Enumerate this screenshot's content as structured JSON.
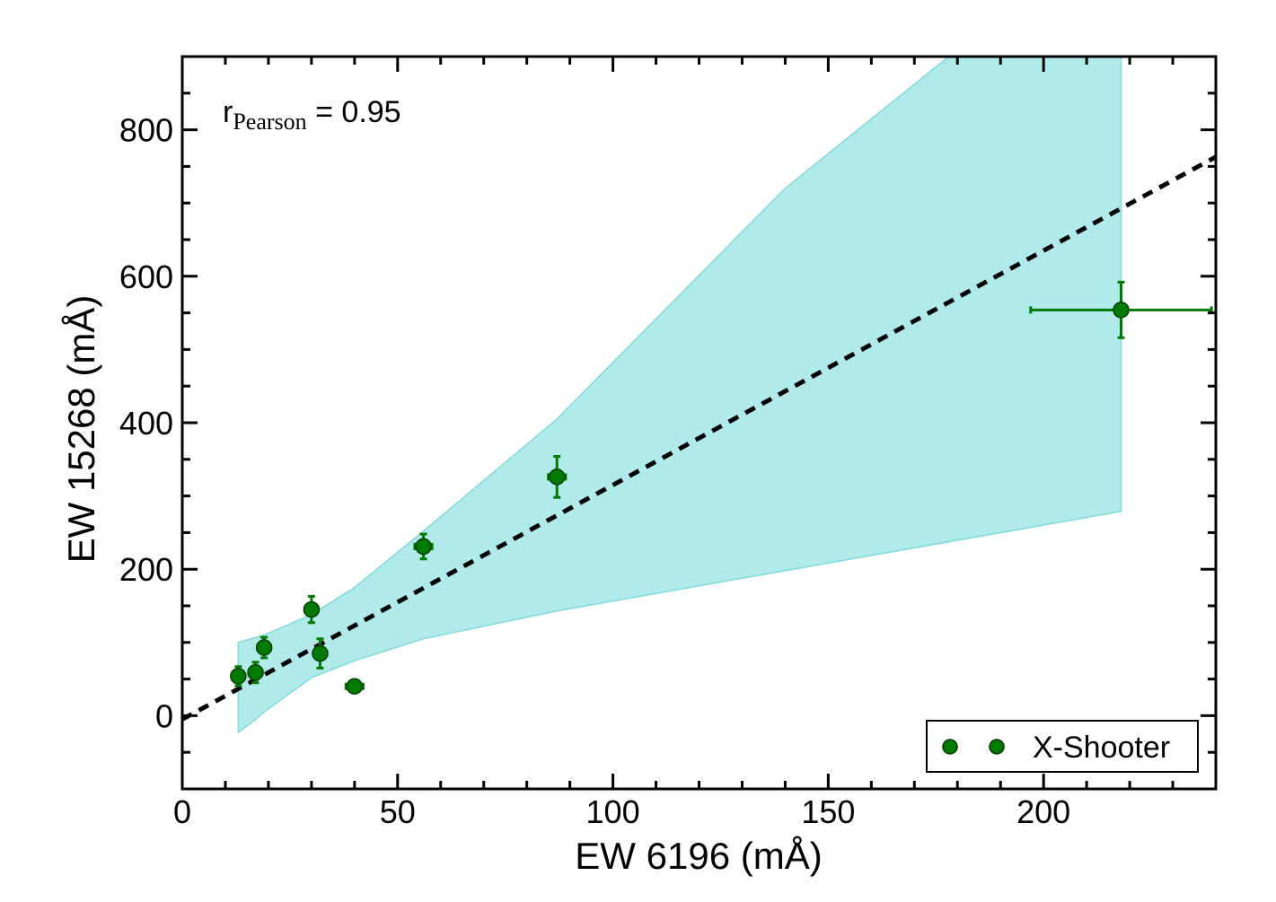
{
  "chart_data": {
    "type": "scatter",
    "title": "",
    "xlabel": "EW 6196 (mÅ)",
    "ylabel": "EW 15268 (mÅ)",
    "xlim": [
      0,
      240
    ],
    "ylim": [
      -100,
      900
    ],
    "xticks": [
      0,
      50,
      100,
      150,
      200
    ],
    "xtick_labels": [
      "0",
      "50",
      "100",
      "150",
      "200"
    ],
    "yticks": [
      0,
      200,
      400,
      600,
      800
    ],
    "ytick_labels": [
      "0",
      "200",
      "400",
      "600",
      "800"
    ],
    "x_minor_step": 10,
    "y_minor_step": 50,
    "grid": false,
    "annotation": {
      "main": "r",
      "subscript": "Pearson",
      "suffix": " = 0.95"
    },
    "legend": {
      "location": "lower-right",
      "label": "X-Shooter"
    },
    "series": [
      {
        "name": "X-Shooter",
        "color": "#007a00",
        "points": [
          {
            "x": 13,
            "y": 54,
            "xerr": 1.5,
            "yerr": 13
          },
          {
            "x": 17,
            "y": 59,
            "xerr": 1.5,
            "yerr": 14
          },
          {
            "x": 19,
            "y": 93,
            "xerr": 1.5,
            "yerr": 14
          },
          {
            "x": 30,
            "y": 145,
            "xerr": 1.5,
            "yerr": 18
          },
          {
            "x": 32,
            "y": 85,
            "xerr": 1.5,
            "yerr": 20
          },
          {
            "x": 40,
            "y": 40,
            "xerr": 2,
            "yerr": 6
          },
          {
            "x": 56,
            "y": 231,
            "xerr": 2,
            "yerr": 17
          },
          {
            "x": 87,
            "y": 326,
            "xerr": 2,
            "yerr": 28
          },
          {
            "x": 218,
            "y": 554,
            "xerr": 21,
            "yerr": 38
          }
        ]
      }
    ],
    "fit_line": {
      "color": "#000000",
      "style": "dashed",
      "x": [
        0,
        240
      ],
      "y": [
        -5,
        763
      ]
    },
    "confidence_band": {
      "color": "#b0eaea",
      "edge_color": "#7fdada",
      "upper": [
        [
          13,
          100
        ],
        [
          19,
          110
        ],
        [
          30,
          138
        ],
        [
          40,
          175
        ],
        [
          56,
          252
        ],
        [
          87,
          405
        ],
        [
          140,
          720
        ],
        [
          178,
          900
        ],
        [
          218,
          900
        ]
      ],
      "lower": [
        [
          13,
          -23
        ],
        [
          17,
          -5
        ],
        [
          19,
          5
        ],
        [
          30,
          52
        ],
        [
          40,
          75
        ],
        [
          56,
          105
        ],
        [
          87,
          143
        ],
        [
          218,
          279
        ]
      ]
    }
  }
}
